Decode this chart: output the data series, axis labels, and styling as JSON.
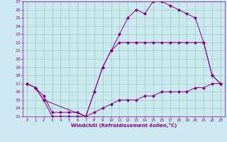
{
  "xlabel": "Windchill (Refroidissement éolien,°C)",
  "bg_color": "#cce8f0",
  "grid_color": "#99ccbb",
  "line_color": "#880088",
  "xlim": [
    -0.5,
    23.5
  ],
  "ylim": [
    13,
    27
  ],
  "yticks": [
    13,
    14,
    15,
    16,
    17,
    18,
    19,
    20,
    21,
    22,
    23,
    24,
    25,
    26,
    27
  ],
  "xticks": [
    0,
    1,
    2,
    3,
    4,
    5,
    6,
    7,
    8,
    9,
    10,
    11,
    12,
    13,
    14,
    15,
    16,
    17,
    18,
    19,
    20,
    21,
    22,
    23
  ],
  "line1_x": [
    0,
    1,
    2,
    3,
    4,
    5,
    6,
    7,
    8,
    9,
    10,
    11,
    12,
    13,
    14,
    15,
    16,
    17,
    18,
    19,
    20,
    21,
    22,
    23
  ],
  "line1_y": [
    17.0,
    16.5,
    15.0,
    13.0,
    13.0,
    13.0,
    13.0,
    13.0,
    13.5,
    14.0,
    14.5,
    15.0,
    15.0,
    15.0,
    15.5,
    15.5,
    16.0,
    16.0,
    16.0,
    16.0,
    16.5,
    16.5,
    17.0,
    17.0
  ],
  "line2_x": [
    0,
    1,
    2,
    3,
    4,
    5,
    6,
    7,
    8,
    9,
    10,
    11,
    12,
    13,
    14,
    15,
    16,
    17,
    18,
    19,
    20,
    21,
    22,
    23
  ],
  "line2_y": [
    17.0,
    16.5,
    15.5,
    13.5,
    13.5,
    13.5,
    13.5,
    13.0,
    16.0,
    19.0,
    21.0,
    22.0,
    22.0,
    22.0,
    22.0,
    22.0,
    22.0,
    22.0,
    22.0,
    22.0,
    22.0,
    22.0,
    18.0,
    17.0
  ],
  "line3_x": [
    0,
    1,
    2,
    7,
    8,
    9,
    10,
    11,
    12,
    13,
    14,
    15,
    16,
    17,
    18,
    19,
    20,
    21,
    22,
    23
  ],
  "line3_y": [
    17.0,
    16.5,
    15.0,
    13.0,
    16.0,
    19.0,
    21.0,
    23.0,
    25.0,
    26.0,
    25.5,
    27.0,
    27.0,
    26.5,
    26.0,
    25.5,
    25.0,
    22.0,
    18.0,
    17.0
  ]
}
